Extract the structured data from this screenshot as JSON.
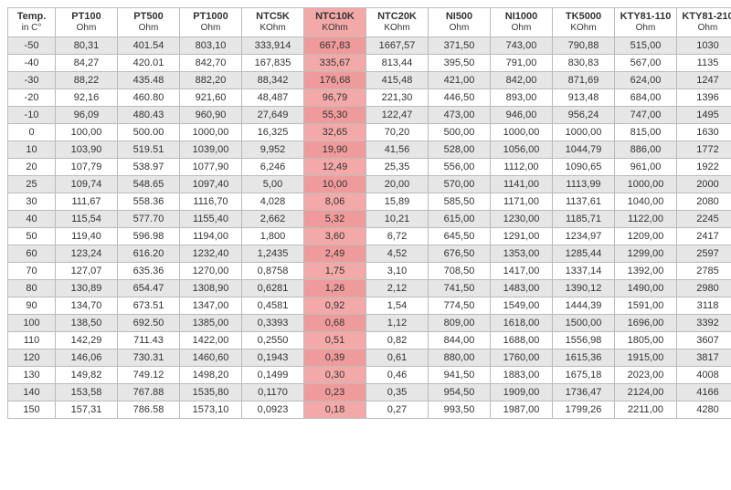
{
  "table": {
    "columns": [
      {
        "label": "Temp.",
        "unit": "in C°"
      },
      {
        "label": "PT100",
        "unit": "Ohm"
      },
      {
        "label": "PT500",
        "unit": "Ohm"
      },
      {
        "label": "PT1000",
        "unit": "Ohm"
      },
      {
        "label": "NTC5K",
        "unit": "KOhm"
      },
      {
        "label": "NTC10K",
        "unit": "KOhm"
      },
      {
        "label": "NTC20K",
        "unit": "KOhm"
      },
      {
        "label": "NI500",
        "unit": "Ohm"
      },
      {
        "label": "NI1000",
        "unit": "Ohm"
      },
      {
        "label": "TK5000",
        "unit": "KOhm"
      },
      {
        "label": "KTY81-110",
        "unit": "Ohm"
      },
      {
        "label": "KTY81-210",
        "unit": "Ohm"
      }
    ],
    "highlight_col_index": 5,
    "highlight_color": "#f4a9a9",
    "zebra_color": "#e6e6e6",
    "border_color": "#bbbbbb",
    "font_size": 11,
    "rows": [
      [
        "-50",
        "80,31",
        "401.54",
        "803,10",
        "333,914",
        "667,83",
        "1667,57",
        "371,50",
        "743,00",
        "790,88",
        "515,00",
        "1030"
      ],
      [
        "-40",
        "84,27",
        "420.01",
        "842,70",
        "167,835",
        "335,67",
        "813,44",
        "395,50",
        "791,00",
        "830,83",
        "567,00",
        "1135"
      ],
      [
        "-30",
        "88,22",
        "435.48",
        "882,20",
        "88,342",
        "176,68",
        "415,48",
        "421,00",
        "842,00",
        "871,69",
        "624,00",
        "1247"
      ],
      [
        "-20",
        "92,16",
        "460.80",
        "921,60",
        "48,487",
        "96,79",
        "221,30",
        "446,50",
        "893,00",
        "913,48",
        "684,00",
        "1396"
      ],
      [
        "-10",
        "96,09",
        "480.43",
        "960,90",
        "27,649",
        "55,30",
        "122,47",
        "473,00",
        "946,00",
        "956,24",
        "747,00",
        "1495"
      ],
      [
        "0",
        "100,00",
        "500.00",
        "1000,00",
        "16,325",
        "32,65",
        "70,20",
        "500,00",
        "1000,00",
        "1000,00",
        "815,00",
        "1630"
      ],
      [
        "10",
        "103,90",
        "519.51",
        "1039,00",
        "9,952",
        "19,90",
        "41,56",
        "528,00",
        "1056,00",
        "1044,79",
        "886,00",
        "1772"
      ],
      [
        "20",
        "107,79",
        "538.97",
        "1077,90",
        "6,246",
        "12,49",
        "25,35",
        "556,00",
        "1112,00",
        "1090,65",
        "961,00",
        "1922"
      ],
      [
        "25",
        "109,74",
        "548.65",
        "1097,40",
        "5,00",
        "10,00",
        "20,00",
        "570,00",
        "1141,00",
        "1113,99",
        "1000,00",
        "2000"
      ],
      [
        "30",
        "111,67",
        "558.36",
        "1116,70",
        "4,028",
        "8,06",
        "15,89",
        "585,50",
        "1171,00",
        "1137,61",
        "1040,00",
        "2080"
      ],
      [
        "40",
        "115,54",
        "577.70",
        "1155,40",
        "2,662",
        "5,32",
        "10,21",
        "615,00",
        "1230,00",
        "1185,71",
        "1122,00",
        "2245"
      ],
      [
        "50",
        "119,40",
        "596.98",
        "1194,00",
        "1,800",
        "3,60",
        "6,72",
        "645,50",
        "1291,00",
        "1234,97",
        "1209,00",
        "2417"
      ],
      [
        "60",
        "123,24",
        "616.20",
        "1232,40",
        "1,2435",
        "2,49",
        "4,52",
        "676,50",
        "1353,00",
        "1285,44",
        "1299,00",
        "2597"
      ],
      [
        "70",
        "127,07",
        "635.36",
        "1270,00",
        "0,8758",
        "1,75",
        "3,10",
        "708,50",
        "1417,00",
        "1337,14",
        "1392,00",
        "2785"
      ],
      [
        "80",
        "130,89",
        "654.47",
        "1308,90",
        "0,6281",
        "1,26",
        "2,12",
        "741,50",
        "1483,00",
        "1390,12",
        "1490,00",
        "2980"
      ],
      [
        "90",
        "134,70",
        "673.51",
        "1347,00",
        "0,4581",
        "0,92",
        "1,54",
        "774,50",
        "1549,00",
        "1444,39",
        "1591,00",
        "3118"
      ],
      [
        "100",
        "138,50",
        "692.50",
        "1385,00",
        "0,3393",
        "0,68",
        "1,12",
        "809,00",
        "1618,00",
        "1500,00",
        "1696,00",
        "3392"
      ],
      [
        "110",
        "142,29",
        "711.43",
        "1422,00",
        "0,2550",
        "0,51",
        "0,82",
        "844,00",
        "1688,00",
        "1556,98",
        "1805,00",
        "3607"
      ],
      [
        "120",
        "146,06",
        "730.31",
        "1460,60",
        "0,1943",
        "0,39",
        "0,61",
        "880,00",
        "1760,00",
        "1615,36",
        "1915,00",
        "3817"
      ],
      [
        "130",
        "149,82",
        "749.12",
        "1498,20",
        "0,1499",
        "0,30",
        "0,46",
        "941,50",
        "1883,00",
        "1675,18",
        "2023,00",
        "4008"
      ],
      [
        "140",
        "153,58",
        "767.88",
        "1535,80",
        "0,1170",
        "0,23",
        "0,35",
        "954,50",
        "1909,00",
        "1736,47",
        "2124,00",
        "4166"
      ],
      [
        "150",
        "157,31",
        "786.58",
        "1573,10",
        "0,0923",
        "0,18",
        "0,27",
        "993,50",
        "1987,00",
        "1799,26",
        "2211,00",
        "4280"
      ]
    ]
  }
}
